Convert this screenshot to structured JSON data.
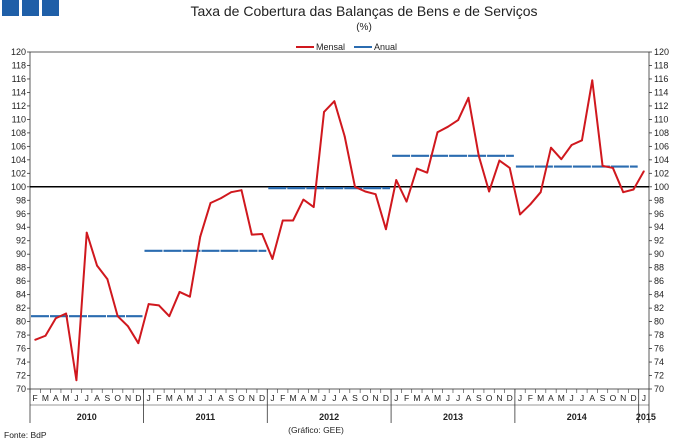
{
  "title": "Taxa de Cobertura das Balanças de Bens e de Serviços",
  "subtitle": "(%)",
  "source_label": "Fonte: BdP",
  "credit_label": "(Gráfico: GEE)",
  "chart_data": {
    "type": "line",
    "title": "Taxa de Cobertura das Balanças de Bens e de Serviços",
    "subtitle": "(%)",
    "ylim": [
      70,
      120
    ],
    "y_ticks": [
      70,
      72,
      74,
      76,
      78,
      80,
      82,
      84,
      86,
      88,
      90,
      92,
      94,
      96,
      98,
      100,
      102,
      104,
      106,
      108,
      110,
      112,
      114,
      116,
      118,
      120
    ],
    "y_axis_both_sides": true,
    "reference_line": 100,
    "grid": false,
    "legend_position": "top-center",
    "legend": [
      "Mensal",
      "Anual"
    ],
    "years": [
      "2010",
      "2011",
      "2012",
      "2013",
      "2014",
      "2015"
    ],
    "month_labels": [
      "J",
      "F",
      "M",
      "A",
      "M",
      "J",
      "J",
      "A",
      "S",
      "O",
      "N",
      "D"
    ],
    "first_month_label": "F",
    "series": [
      {
        "name": "Mensal",
        "color": "#d0181e",
        "start": "2010-02",
        "values": [
          77.3,
          77.9,
          80.5,
          81.2,
          71.3,
          93.2,
          88.3,
          86.3,
          80.8,
          79.3,
          76.8,
          82.6,
          82.4,
          80.8,
          84.4,
          83.7,
          92.6,
          97.6,
          98.3,
          99.2,
          99.5,
          92.9,
          93.0,
          89.3,
          95.0,
          95.0,
          98.1,
          97.0,
          111.1,
          112.7,
          107.5,
          100.0,
          99.3,
          98.9,
          93.7,
          101.0,
          97.8,
          102.7,
          102.1,
          108.1,
          108.9,
          109.9,
          113.2,
          104.6,
          99.3,
          103.9,
          102.8,
          95.9,
          97.4,
          99.2,
          105.8,
          104.1,
          106.2,
          106.9,
          115.8,
          103.1,
          102.8,
          99.2,
          99.6,
          102.3
        ]
      },
      {
        "name": "Anual",
        "color": "#2b6cb0",
        "segments": [
          {
            "year": "2010",
            "value": 80.8
          },
          {
            "year": "2011",
            "value": 90.5
          },
          {
            "year": "2012",
            "value": 99.8
          },
          {
            "year": "2013",
            "value": 104.6
          },
          {
            "year": "2014",
            "value": 103.0
          }
        ]
      }
    ]
  },
  "colors": {
    "logo": "#1f5fa8",
    "axis": "#333333",
    "reference": "#000000"
  },
  "icons": [
    "logo-squares-icon"
  ]
}
